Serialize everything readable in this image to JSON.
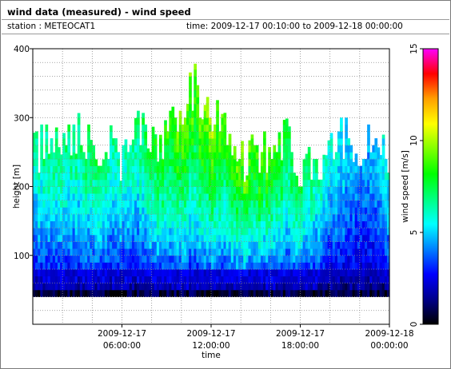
{
  "header": {
    "title": "wind data (measured) - wind speed",
    "station": "station : METEOCAT1",
    "time_range": "time: 2009-12-17 00:10:00 to 2009-12-18 00:00:00"
  },
  "chart_data": {
    "type": "heatmap",
    "title": "wind data (measured) - wind speed",
    "xlabel": "time",
    "ylabel": "height [m]",
    "colorbar_label": "wind speed [m/s]",
    "x_range_hours": [
      0,
      24
    ],
    "ylim": [
      0,
      400
    ],
    "clim": [
      0,
      15
    ],
    "x_ticks": [
      {
        "hour": 6,
        "label1": "2009-12-17",
        "label2": "06:00:00"
      },
      {
        "hour": 12,
        "label1": "2009-12-17",
        "label2": "12:00:00"
      },
      {
        "hour": 18,
        "label1": "2009-12-17",
        "label2": "18:00:00"
      },
      {
        "hour": 24,
        "label1": "2009-12-18",
        "label2": "00:00:00"
      }
    ],
    "y_ticks": [
      100,
      200,
      300,
      400
    ],
    "colorbar_ticks": [
      0,
      5,
      10,
      15
    ],
    "grid": true,
    "grid_y_step": 20,
    "colormap": [
      "#000000",
      "#00008b",
      "#0000ff",
      "#0080ff",
      "#00ffff",
      "#00ff80",
      "#00ff00",
      "#80ff00",
      "#ffff00",
      "#ffa000",
      "#ff0000",
      "#ff00ff"
    ],
    "data_bottom_m": 40,
    "bin_height_m": 10,
    "profiles": {
      "hours": [
        0,
        1,
        2,
        3,
        4,
        5,
        6,
        7,
        8,
        9,
        10,
        11,
        12,
        13,
        14,
        15,
        16,
        17,
        18,
        19,
        20,
        21,
        22,
        23,
        24
      ],
      "top_m": [
        240,
        265,
        270,
        275,
        260,
        255,
        235,
        280,
        260,
        270,
        320,
        340,
        290,
        280,
        235,
        240,
        255,
        270,
        225,
        230,
        245,
        270,
        250,
        250,
        230
      ],
      "speed_at_top": [
        6.5,
        7,
        7.2,
        7,
        7.5,
        7,
        6.5,
        7,
        8,
        8.5,
        9.5,
        9,
        10,
        8.5,
        9.5,
        9,
        9,
        8,
        8,
        7,
        6,
        5.5,
        4.5,
        5,
        6
      ]
    }
  }
}
